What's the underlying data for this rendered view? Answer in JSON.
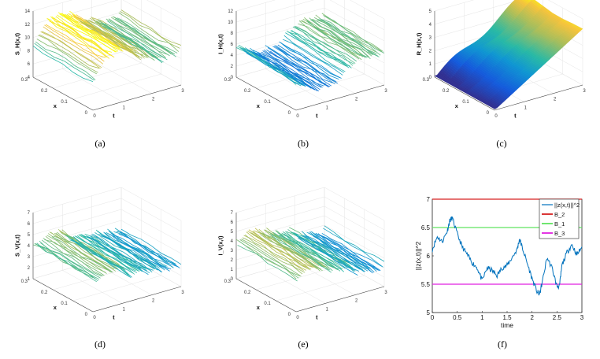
{
  "chart_data": [
    {
      "type": "surface",
      "caption": "(a)",
      "zlabel": "S_H(x,t)",
      "xlabel": "x",
      "ylabel": "t",
      "x_ticks": [
        "0",
        "0.1",
        "0.2",
        "0.3"
      ],
      "t_ticks": [
        "0",
        "1",
        "2",
        "3"
      ],
      "z_ticks": [
        "4",
        "6",
        "8",
        "10",
        "12",
        "14"
      ],
      "zlim": [
        3,
        14
      ],
      "style": "mesh"
    },
    {
      "type": "surface",
      "caption": "(b)",
      "zlabel": "I_H(x,t)",
      "xlabel": "x",
      "ylabel": "t",
      "x_ticks": [
        "0",
        "0.1",
        "0.2",
        "0.3"
      ],
      "t_ticks": [
        "0",
        "1",
        "2",
        "3"
      ],
      "z_ticks": [
        "0",
        "2",
        "4",
        "6",
        "8",
        "10",
        "12"
      ],
      "zlim": [
        0,
        12
      ],
      "style": "mesh"
    },
    {
      "type": "surface",
      "caption": "(c)",
      "zlabel": "R_H(x,t)",
      "xlabel": "x",
      "ylabel": "t",
      "x_ticks": [
        "0",
        "0.1",
        "0.2",
        "0.3"
      ],
      "t_ticks": [
        "0",
        "1",
        "2",
        "3"
      ],
      "z_ticks": [
        "0",
        "1",
        "2",
        "3",
        "4",
        "5"
      ],
      "zlim": [
        0,
        5
      ],
      "style": "filled"
    },
    {
      "type": "surface",
      "caption": "(d)",
      "zlabel": "S_V(x,t)",
      "xlabel": "x",
      "ylabel": "t",
      "x_ticks": [
        "0",
        "0.1",
        "0.2",
        "0.3"
      ],
      "t_ticks": [
        "0",
        "1",
        "2",
        "3"
      ],
      "z_ticks": [
        "1",
        "2",
        "3",
        "4",
        "5",
        "6",
        "7"
      ],
      "zlim": [
        1,
        7
      ],
      "style": "mesh"
    },
    {
      "type": "surface",
      "caption": "(e)",
      "zlabel": "I_V(x,t)",
      "xlabel": "x",
      "ylabel": "t",
      "x_ticks": [
        "0",
        "0.1",
        "0.2",
        "0.3"
      ],
      "t_ticks": [
        "0",
        "1",
        "2",
        "3"
      ],
      "z_ticks": [
        "0",
        "1",
        "2",
        "3",
        "4",
        "5",
        "6",
        "7"
      ],
      "zlim": [
        0,
        7
      ],
      "style": "mesh"
    },
    {
      "type": "line",
      "caption": "(f)",
      "xlabel": "time",
      "ylabel": "||z(x,t)||^2",
      "xlim": [
        0,
        3
      ],
      "ylim": [
        5,
        7
      ],
      "x_ticks": [
        "0",
        "0.5",
        "1",
        "1.5",
        "2",
        "2.5",
        "3"
      ],
      "y_ticks": [
        "5",
        "5.5",
        "6",
        "6.5",
        "7"
      ],
      "legend_position": "top-right",
      "series": [
        {
          "name": "||z(x,t)||^2",
          "color": "#0072bd",
          "x": [
            0,
            0.1,
            0.2,
            0.3,
            0.35,
            0.4,
            0.5,
            0.6,
            0.7,
            0.8,
            0.9,
            1.0,
            1.1,
            1.2,
            1.3,
            1.4,
            1.5,
            1.6,
            1.7,
            1.75,
            1.8,
            1.9,
            2.0,
            2.1,
            2.15,
            2.2,
            2.3,
            2.4,
            2.5,
            2.55,
            2.6,
            2.7,
            2.8,
            2.9,
            3.0
          ],
          "y": [
            6.11,
            6.34,
            6.25,
            6.44,
            6.62,
            6.67,
            6.39,
            6.16,
            6.02,
            5.88,
            5.79,
            5.56,
            5.79,
            5.74,
            5.65,
            5.79,
            5.83,
            5.97,
            6.11,
            6.3,
            6.16,
            5.88,
            5.6,
            5.37,
            5.32,
            5.51,
            5.97,
            5.79,
            5.46,
            5.46,
            5.83,
            6.06,
            6.2,
            6.02,
            6.16
          ]
        },
        {
          "name": "B_2",
          "color": "#d62020",
          "constant": 7
        },
        {
          "name": "B_1",
          "color": "#5fe35f",
          "constant": 6.5
        },
        {
          "name": "B_3",
          "color": "#e020e0",
          "constant": 5.5
        }
      ]
    }
  ]
}
